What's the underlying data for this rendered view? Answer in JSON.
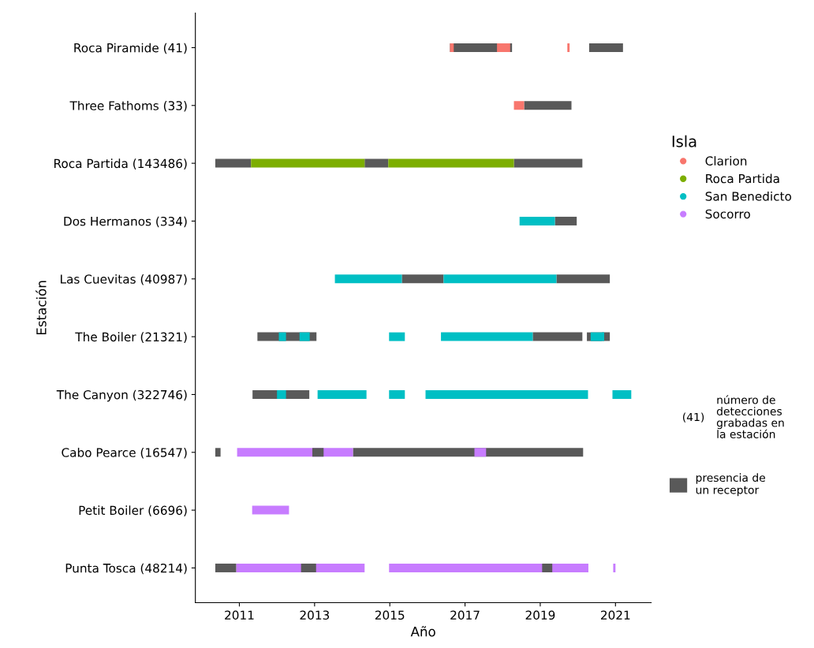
{
  "chart_data": {
    "type": "bar",
    "orientation": "horizontal",
    "xlabel": "Año",
    "ylabel": "Estación",
    "legend_title": "Isla",
    "legend": "right",
    "grid": false,
    "categories": [
      "Roca Piramide (41)",
      "Three Fathoms (33)",
      "Roca Partida (143486)",
      "Dos Hermanos (334)",
      "Las Cuevitas (40987)",
      "The Boiler (21321)",
      "The Canyon (322746)",
      "Cabo Pearce (16547)",
      "Petit Boiler (6696)",
      "Punta Tosca (48214)"
    ],
    "xlim": [
      2009.83,
      2021.95
    ],
    "xticks": [
      2011,
      2013,
      2015,
      2017,
      2019,
      2021
    ],
    "series": [
      {
        "name": "presencia de\nun receptor",
        "color": "#595959",
        "base": [
          2016.6,
          2018.57,
          2010.36,
          2019.39,
          2015.32,
          2011.48,
          2011.35,
          2010.36,
          null,
          2010.36
        ],
        "values": [
          1.65,
          1.26,
          0.95,
          0.58,
          1.11,
          1.57,
          1.51,
          0.14,
          null,
          0.56
        ]
      },
      {
        "color": "#595959",
        "base": [
          2020.3,
          null,
          2014.33,
          null,
          2019.43,
          2018.8,
          null,
          2014.02,
          null,
          null
        ],
        "values": [
          0.9,
          null,
          0.63,
          null,
          1.42,
          1.32,
          null,
          6.12,
          null,
          null
        ]
      },
      {
        "color": "#595959",
        "base": [
          null,
          null,
          2018.3,
          null,
          null,
          2020.24,
          null,
          null,
          null,
          null
        ],
        "values": [
          null,
          null,
          1.82,
          null,
          null,
          0.61,
          null,
          null,
          null,
          null
        ]
      },
      {
        "name": "Clarion",
        "color": "#f8766d",
        "base": [
          2016.6,
          2018.3,
          null,
          null,
          null,
          null,
          null,
          null,
          null,
          null
        ],
        "values": [
          0.1,
          0.27,
          null,
          null,
          null,
          null,
          null,
          null,
          null,
          null
        ]
      },
      {
        "color": "#f8766d",
        "base": [
          2017.85,
          null,
          null,
          null,
          null,
          null,
          null,
          null,
          null,
          null
        ],
        "values": [
          0.35,
          null,
          null,
          null,
          null,
          null,
          null,
          null,
          null,
          null
        ]
      },
      {
        "color": "#f8766d",
        "base": [
          2019.72,
          null,
          null,
          null,
          null,
          null,
          null,
          null,
          null,
          null
        ],
        "values": [
          0.06,
          null,
          null,
          null,
          null,
          null,
          null,
          null,
          null,
          null
        ]
      },
      {
        "name": "Roca Partida",
        "color": "#7cae00",
        "base": [
          null,
          null,
          2011.31,
          null,
          null,
          null,
          null,
          null,
          null,
          null
        ],
        "values": [
          null,
          null,
          3.02,
          null,
          null,
          null,
          null,
          null,
          null,
          null
        ]
      },
      {
        "color": "#7cae00",
        "base": [
          null,
          null,
          2014.96,
          null,
          null,
          null,
          null,
          null,
          null,
          null
        ],
        "values": [
          null,
          null,
          3.34,
          null,
          null,
          null,
          null,
          null,
          null,
          null
        ]
      },
      {
        "name": "San Benedicto",
        "color": "#00bfc4",
        "base": [
          null,
          null,
          null,
          2018.45,
          2013.54,
          2012.05,
          2012.0,
          null,
          null,
          null
        ],
        "values": [
          null,
          null,
          null,
          0.94,
          1.78,
          0.19,
          0.24,
          null,
          null,
          null
        ]
      },
      {
        "color": "#00bfc4",
        "base": [
          null,
          null,
          null,
          null,
          2016.43,
          2012.6,
          2013.08,
          null,
          null,
          null
        ],
        "values": [
          null,
          null,
          null,
          null,
          3.0,
          0.27,
          1.3,
          null,
          null,
          null
        ]
      },
      {
        "color": "#00bfc4",
        "base": [
          null,
          null,
          null,
          null,
          null,
          2014.98,
          2014.98,
          null,
          null,
          null
        ],
        "values": [
          null,
          null,
          null,
          null,
          null,
          0.42,
          0.42,
          null,
          null,
          null
        ]
      },
      {
        "color": "#00bfc4",
        "base": [
          null,
          null,
          null,
          null,
          null,
          2016.36,
          2015.95,
          null,
          null,
          null
        ],
        "values": [
          null,
          null,
          null,
          null,
          null,
          2.44,
          4.32,
          null,
          null,
          null
        ]
      },
      {
        "color": "#00bfc4",
        "base": [
          null,
          null,
          null,
          null,
          null,
          2020.34,
          2020.92,
          null,
          null,
          null
        ],
        "values": [
          null,
          null,
          null,
          null,
          null,
          0.36,
          0.5,
          null,
          null,
          null
        ]
      },
      {
        "name": "Socorro",
        "color": "#c77cff",
        "base": [
          null,
          null,
          null,
          null,
          null,
          null,
          null,
          2010.94,
          2011.34,
          2010.92
        ],
        "values": [
          null,
          null,
          null,
          null,
          null,
          null,
          null,
          3.08,
          0.98,
          3.41
        ]
      },
      {
        "color": "#c77cff",
        "base": [
          null,
          null,
          null,
          null,
          null,
          null,
          null,
          2017.25,
          null,
          2014.98
        ],
        "values": [
          null,
          null,
          null,
          null,
          null,
          null,
          null,
          0.31,
          null,
          5.3
        ]
      },
      {
        "color": "#c77cff",
        "base": [
          null,
          null,
          null,
          null,
          null,
          null,
          null,
          null,
          null,
          2020.94
        ],
        "values": [
          null,
          null,
          null,
          null,
          null,
          null,
          null,
          null,
          null,
          0.06
        ]
      },
      {
        "color": "#595959",
        "base": [
          null,
          null,
          null,
          null,
          null,
          null,
          null,
          2012.94,
          null,
          2012.64
        ],
        "values": [
          null,
          null,
          null,
          null,
          null,
          null,
          null,
          0.3,
          null,
          0.4
        ]
      },
      {
        "color": "#595959",
        "base": [
          null,
          null,
          null,
          null,
          null,
          null,
          null,
          null,
          null,
          2019.05
        ],
        "values": [
          null,
          null,
          null,
          null,
          null,
          null,
          null,
          null,
          null,
          0.27
        ]
      }
    ],
    "annotations": [
      "(41)",
      "número de\ndetecciones\ngrabadas en\nla estación"
    ]
  }
}
